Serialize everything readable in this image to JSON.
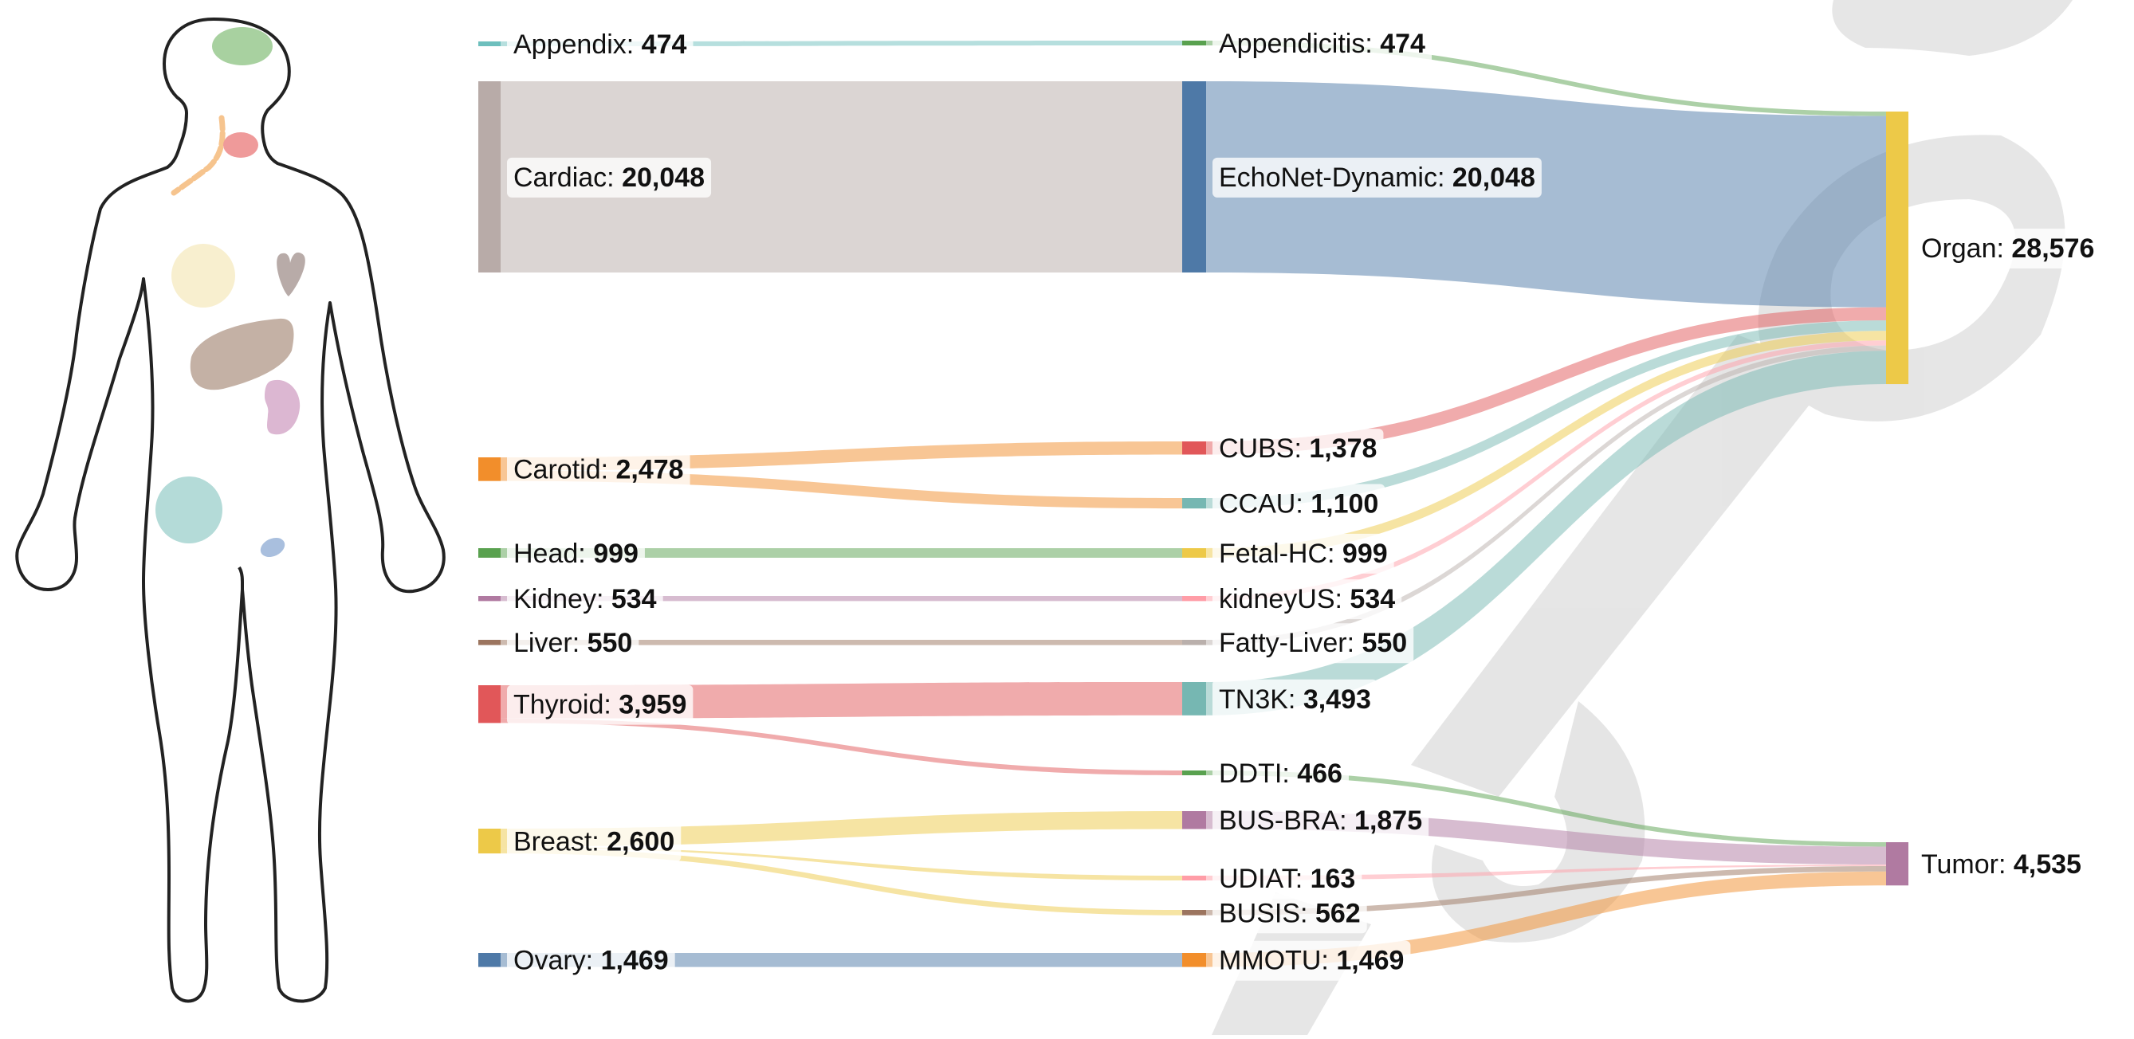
{
  "chart_data": {
    "type": "sankey",
    "columns": [
      {
        "name": "anatomy",
        "nodes": [
          {
            "id": "appendix",
            "label": "Appendix",
            "value": 474,
            "color": "#6dbfbd"
          },
          {
            "id": "cardiac",
            "label": "Cardiac",
            "value": 20048,
            "color": "#b8aba8"
          },
          {
            "id": "carotid",
            "label": "Carotid",
            "value": 2478,
            "color": "#f28e2b"
          },
          {
            "id": "head",
            "label": "Head",
            "value": 999,
            "color": "#59a14f"
          },
          {
            "id": "kidney",
            "label": "Kidney",
            "value": 534,
            "color": "#b07aa1"
          },
          {
            "id": "liver",
            "label": "Liver",
            "value": 550,
            "color": "#9c755f"
          },
          {
            "id": "thyroid",
            "label": "Thyroid",
            "value": 3959,
            "color": "#e15759"
          },
          {
            "id": "breast",
            "label": "Breast",
            "value": 2600,
            "color": "#edc948"
          },
          {
            "id": "ovary",
            "label": "Ovary",
            "value": 1469,
            "color": "#4e79a7"
          }
        ]
      },
      {
        "name": "dataset",
        "nodes": [
          {
            "id": "appendicitis",
            "label": "Appendicitis",
            "value": 474,
            "color": "#59a14f"
          },
          {
            "id": "echonet",
            "label": "EchoNet-Dynamic",
            "value": 20048,
            "color": "#4e79a7"
          },
          {
            "id": "cubs",
            "label": "CUBS",
            "value": 1378,
            "color": "#e15759"
          },
          {
            "id": "ccau",
            "label": "CCAU",
            "value": 1100,
            "color": "#76b7b2"
          },
          {
            "id": "fetalhc",
            "label": "Fetal-HC",
            "value": 999,
            "color": "#edc948"
          },
          {
            "id": "kidneyus",
            "label": "kidneyUS",
            "value": 534,
            "color": "#ff9da7"
          },
          {
            "id": "fattyliver",
            "label": "Fatty-Liver",
            "value": 550,
            "color": "#bab0ac"
          },
          {
            "id": "tn3k",
            "label": "TN3K",
            "value": 3493,
            "color": "#76b7b2"
          },
          {
            "id": "ddti",
            "label": "DDTI",
            "value": 466,
            "color": "#59a14f"
          },
          {
            "id": "busbra",
            "label": "BUS-BRA",
            "value": 1875,
            "color": "#b07aa1"
          },
          {
            "id": "udiat",
            "label": "UDIAT",
            "value": 163,
            "color": "#ff9da7"
          },
          {
            "id": "busis",
            "label": "BUSIS",
            "value": 562,
            "color": "#9c755f"
          },
          {
            "id": "mmotu",
            "label": "MMOTU",
            "value": 1469,
            "color": "#f28e2b"
          }
        ]
      },
      {
        "name": "task",
        "nodes": [
          {
            "id": "organ",
            "label": "Organ",
            "value": 28576,
            "color": "#edc948"
          },
          {
            "id": "tumor",
            "label": "Tumor",
            "value": 4535,
            "color": "#b07aa1"
          }
        ]
      }
    ],
    "links": [
      {
        "source": "appendix",
        "target": "appendicitis",
        "value": 474
      },
      {
        "source": "cardiac",
        "target": "echonet",
        "value": 20048
      },
      {
        "source": "carotid",
        "target": "cubs",
        "value": 1378
      },
      {
        "source": "carotid",
        "target": "ccau",
        "value": 1100
      },
      {
        "source": "head",
        "target": "fetalhc",
        "value": 999
      },
      {
        "source": "kidney",
        "target": "kidneyus",
        "value": 534
      },
      {
        "source": "liver",
        "target": "fattyliver",
        "value": 550
      },
      {
        "source": "thyroid",
        "target": "tn3k",
        "value": 3493
      },
      {
        "source": "thyroid",
        "target": "ddti",
        "value": 466
      },
      {
        "source": "breast",
        "target": "busbra",
        "value": 1875
      },
      {
        "source": "breast",
        "target": "udiat",
        "value": 163
      },
      {
        "source": "breast",
        "target": "busis",
        "value": 562
      },
      {
        "source": "ovary",
        "target": "mmotu",
        "value": 1469
      },
      {
        "source": "appendicitis",
        "target": "organ",
        "value": 474
      },
      {
        "source": "echonet",
        "target": "organ",
        "value": 20048
      },
      {
        "source": "cubs",
        "target": "organ",
        "value": 1378
      },
      {
        "source": "ccau",
        "target": "organ",
        "value": 1100
      },
      {
        "source": "fetalhc",
        "target": "organ",
        "value": 999
      },
      {
        "source": "kidneyus",
        "target": "organ",
        "value": 534
      },
      {
        "source": "fattyliver",
        "target": "organ",
        "value": 550
      },
      {
        "source": "tn3k",
        "target": "organ",
        "value": 3493
      },
      {
        "source": "ddti",
        "target": "tumor",
        "value": 466
      },
      {
        "source": "busbra",
        "target": "tumor",
        "value": 1875
      },
      {
        "source": "udiat",
        "target": "tumor",
        "value": 163
      },
      {
        "source": "busis",
        "target": "tumor",
        "value": 562
      },
      {
        "source": "mmotu",
        "target": "tumor",
        "value": 1469
      }
    ]
  },
  "figure": {
    "body_outline_icon": "human-body-outline",
    "organ_icons": [
      {
        "name": "brain",
        "color": "#a8d1a0"
      },
      {
        "name": "thyroid",
        "color": "#ef9a9a"
      },
      {
        "name": "carotid",
        "color": "#f6c48e"
      },
      {
        "name": "breast",
        "color": "#f8efcf"
      },
      {
        "name": "heart",
        "color": "#b8aba8"
      },
      {
        "name": "liver",
        "color": "#c4b1a5"
      },
      {
        "name": "kidney",
        "color": "#dcb7d2"
      },
      {
        "name": "ovary",
        "color": "#b4dbd8"
      },
      {
        "name": "appendix",
        "color": "#a9bfde"
      }
    ],
    "watermark_color": "#bdbdbd"
  }
}
